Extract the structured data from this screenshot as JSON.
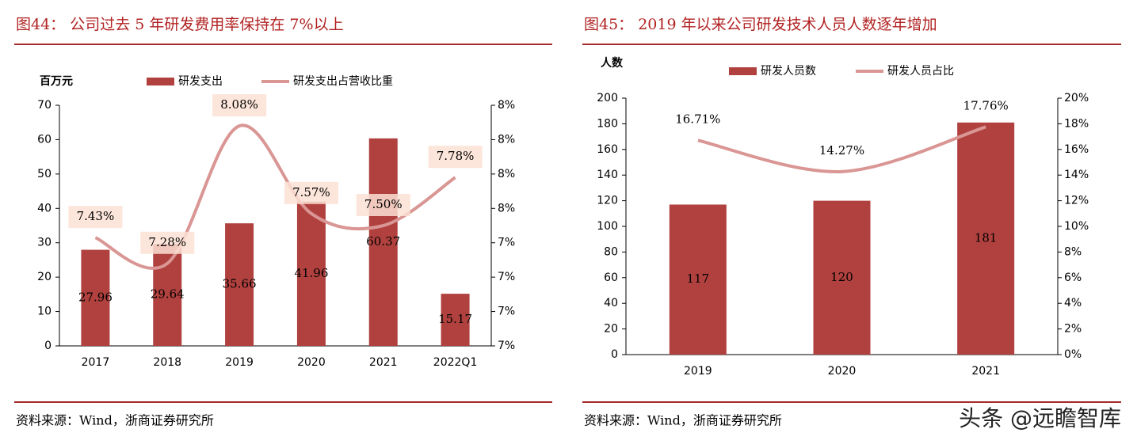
{
  "chart_data": [
    {
      "type": "bar",
      "title": "图44： 公司过去 5 年研发费用率保持在 7%以上",
      "y_label": "百万元",
      "categories": [
        "2017",
        "2018",
        "2019",
        "2020",
        "2021",
        "2022Q1"
      ],
      "series": [
        {
          "name": "研发支出",
          "color": "#b0413e",
          "values": [
            27.96,
            29.64,
            35.66,
            41.96,
            60.37,
            15.17
          ]
        },
        {
          "name": "研发支出占营收比重",
          "type": "line",
          "axis": "y2",
          "color": "#d99694",
          "values": [
            7.43,
            7.28,
            8.08,
            7.57,
            7.5,
            7.78
          ],
          "value_labels": [
            "7.43%",
            "7.28%",
            "8.08%",
            "7.57%",
            "7.50%",
            "7.78%"
          ]
        }
      ],
      "ylim": [
        0,
        70
      ],
      "yticks": [
        0,
        10,
        20,
        30,
        40,
        50,
        60,
        70
      ],
      "y2lim": [
        6.8,
        8.2
      ],
      "y2ticks": [
        {
          "value": 6.8,
          "label": "7%"
        },
        {
          "value": 7.0,
          "label": "7%"
        },
        {
          "value": 7.2,
          "label": "7%"
        },
        {
          "value": 7.4,
          "label": "7%"
        },
        {
          "value": 7.6,
          "label": "8%"
        },
        {
          "value": 7.8,
          "label": "8%"
        },
        {
          "value": 8.0,
          "label": "8%"
        },
        {
          "value": 8.2,
          "label": "8%"
        }
      ],
      "source": "资料来源：Wind，浙商证券研究所"
    },
    {
      "type": "bar",
      "title": "图45： 2019 年以来公司研发技术人员人数逐年增加",
      "y_label": "人数",
      "categories": [
        "2019",
        "2020",
        "2021"
      ],
      "series": [
        {
          "name": "研发人员数",
          "color": "#b0413e",
          "values": [
            117,
            120,
            181
          ]
        },
        {
          "name": "研发人员占比",
          "type": "line",
          "axis": "y2",
          "color": "#d99694",
          "values": [
            16.71,
            14.27,
            17.76
          ],
          "value_labels": [
            "16.71%",
            "14.27%",
            "17.76%"
          ]
        }
      ],
      "ylim": [
        0,
        200
      ],
      "yticks": [
        0,
        20,
        40,
        60,
        80,
        100,
        120,
        140,
        160,
        180,
        200
      ],
      "y2lim": [
        0,
        20
      ],
      "y2ticks": [
        {
          "value": 0,
          "label": "0%"
        },
        {
          "value": 2,
          "label": "2%"
        },
        {
          "value": 4,
          "label": "4%"
        },
        {
          "value": 6,
          "label": "6%"
        },
        {
          "value": 8,
          "label": "8%"
        },
        {
          "value": 10,
          "label": "10%"
        },
        {
          "value": 12,
          "label": "12%"
        },
        {
          "value": 14,
          "label": "14%"
        },
        {
          "value": 16,
          "label": "16%"
        },
        {
          "value": 18,
          "label": "18%"
        },
        {
          "value": 20,
          "label": "20%"
        }
      ],
      "source": "资料来源：Wind，浙商证券研究所"
    }
  ],
  "watermark": "头条 @远瞻智库"
}
